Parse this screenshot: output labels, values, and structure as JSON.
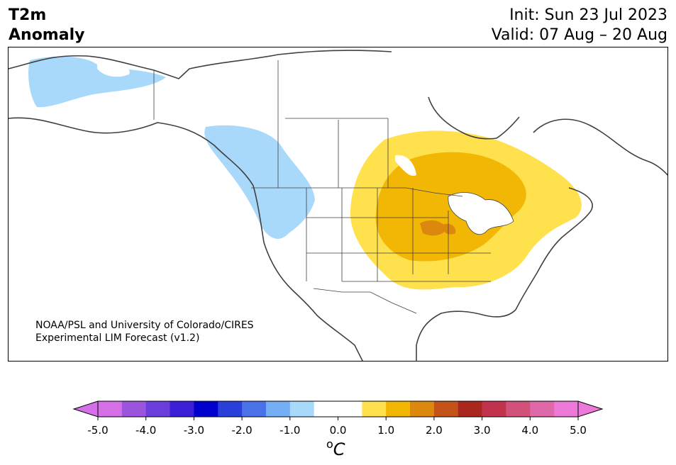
{
  "header": {
    "var_name": "T2m",
    "var_desc": "Anomaly",
    "init_line": "Init: Sun 23 Jul 2023",
    "valid_line": "Valid: 07 Aug – 20 Aug"
  },
  "map": {
    "region": "North America",
    "credit_line1": "NOAA/PSL and University of Colorado/CIRES",
    "credit_line2": "Experimental LIM Forecast (v1.2)",
    "anomaly_regions": [
      {
        "area": "Alaska",
        "category": "-1.0 to -0.5"
      },
      {
        "area": "Pacific Northwest / British Columbia",
        "category": "-1.0 to -0.5"
      },
      {
        "area": "Central US / Great Lakes / Northeast",
        "category": "0.5 to 1.0"
      },
      {
        "area": "Upper Midwest core",
        "category": "1.0 to 1.5"
      },
      {
        "area": "Nebraska / Iowa",
        "category": "1.5 to 2.0"
      }
    ]
  },
  "colorbar": {
    "ticks": [
      "-5.0",
      "-4.0",
      "-3.0",
      "-2.0",
      "-1.0",
      "0.0",
      "1.0",
      "2.0",
      "3.0",
      "4.0",
      "5.0"
    ],
    "unit_symbol": "o",
    "unit_letter": "C",
    "colors": [
      "#d56fe8",
      "#9b55dd",
      "#6a3ddc",
      "#3a1fd6",
      "#0000cd",
      "#2a3fd9",
      "#4a72e8",
      "#74aef4",
      "#a9d9fa",
      "#ffffff",
      "#ffffff",
      "#ffe04d",
      "#f2b705",
      "#dc870e",
      "#c4531a",
      "#a9271f",
      "#c2344e",
      "#d1517a",
      "#de68a8",
      "#ec78d8"
    ]
  }
}
